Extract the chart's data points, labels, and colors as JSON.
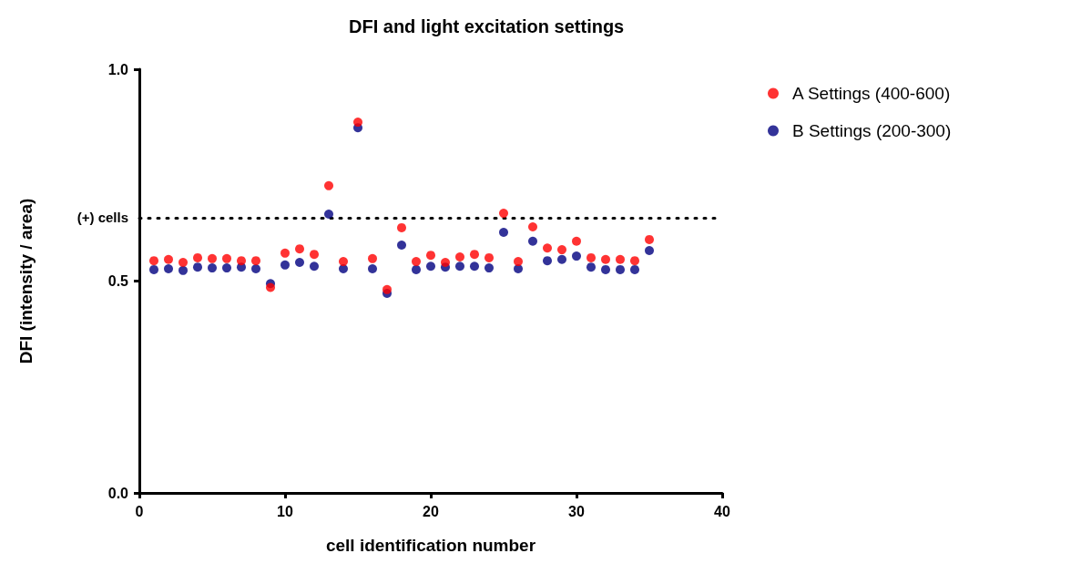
{
  "chart_data": {
    "type": "scatter",
    "title": "DFI and light excitation settings",
    "xlabel": "cell identification number",
    "ylabel": "DFI (intensity / area)",
    "x": [
      1,
      2,
      3,
      4,
      5,
      6,
      7,
      8,
      9,
      10,
      11,
      12,
      13,
      14,
      15,
      16,
      17,
      18,
      19,
      20,
      21,
      22,
      23,
      24,
      25,
      26,
      27,
      28,
      29,
      30,
      31,
      32,
      33,
      34,
      35
    ],
    "series": [
      {
        "name": "A Settings (400-600)",
        "color": "#ff0000",
        "values": [
          0.548,
          0.551,
          0.544,
          0.555,
          0.553,
          0.553,
          0.548,
          0.548,
          0.485,
          0.566,
          0.576,
          0.563,
          0.725,
          0.546,
          0.875,
          0.553,
          0.48,
          0.626,
          0.546,
          0.561,
          0.544,
          0.557,
          0.563,
          0.555,
          0.66,
          0.546,
          0.628,
          0.578,
          0.574,
          0.594,
          0.555,
          0.551,
          0.551,
          0.548,
          0.598
        ]
      },
      {
        "name": "B Settings (200-300)",
        "color": "#000080",
        "values": [
          0.527,
          0.529,
          0.525,
          0.533,
          0.531,
          0.531,
          0.533,
          0.529,
          0.494,
          0.538,
          0.544,
          0.535,
          0.658,
          0.529,
          0.862,
          0.529,
          0.471,
          0.585,
          0.527,
          0.535,
          0.533,
          0.535,
          0.535,
          0.531,
          0.615,
          0.529,
          0.594,
          0.548,
          0.551,
          0.559,
          0.533,
          0.527,
          0.527,
          0.527,
          0.572
        ]
      }
    ],
    "xlim": [
      0,
      40
    ],
    "xticks": [
      0,
      10,
      20,
      30,
      40
    ],
    "ylim": [
      0,
      1
    ],
    "yticks": [
      {
        "value": 0,
        "label": "0.0"
      },
      {
        "value": 0.5,
        "label": "0.5"
      },
      {
        "value": 1,
        "label": "1.0"
      }
    ],
    "ref_lines": [
      {
        "axis": "y",
        "value": 0.65,
        "label": "(+) cells",
        "line_style": "dotted",
        "color": "#000000"
      }
    ],
    "grid": false,
    "legend": "top right",
    "marker": "circle"
  }
}
